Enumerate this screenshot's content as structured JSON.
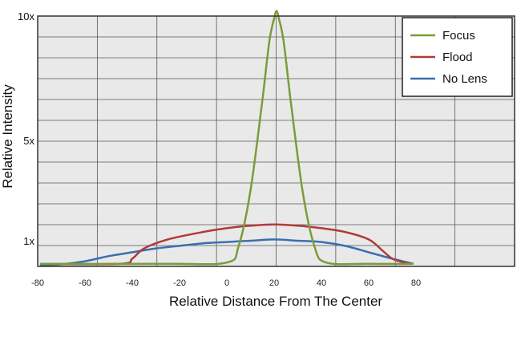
{
  "chart_data": {
    "type": "line",
    "xlabel": "Relative Distance From The Center",
    "ylabel": "Relative Intensity",
    "xlim": [
      -80,
      80
    ],
    "x_ticks": [
      "-80",
      "-60",
      "-40",
      "-20",
      "0",
      "20",
      "40",
      "60",
      "80"
    ],
    "y_ticks": [
      {
        "label": "1x",
        "value": 1
      },
      {
        "label": "5x",
        "value": 5
      },
      {
        "label": "10x",
        "value": 10
      }
    ],
    "grid": true,
    "legend": "top-right",
    "series": [
      {
        "name": "Focus",
        "color": "#7a9c3a",
        "points": [
          [
            -79,
            0.1
          ],
          [
            -25,
            0.1
          ],
          [
            0,
            0.15
          ],
          [
            5,
            0.8
          ],
          [
            10,
            3.0
          ],
          [
            15,
            6.6
          ],
          [
            18,
            9.0
          ],
          [
            20,
            9.9
          ],
          [
            21,
            10.2
          ],
          [
            22,
            9.9
          ],
          [
            24,
            9.0
          ],
          [
            27,
            6.6
          ],
          [
            32,
            3.0
          ],
          [
            37,
            0.8
          ],
          [
            42,
            0.15
          ],
          [
            60,
            0.1
          ],
          [
            79,
            0.1
          ]
        ]
      },
      {
        "name": "Flood",
        "color": "#b03a3a",
        "points": [
          [
            -79,
            0.1
          ],
          [
            -45,
            0.1
          ],
          [
            -40,
            0.3
          ],
          [
            -35,
            0.7
          ],
          [
            -25,
            1.05
          ],
          [
            -10,
            1.35
          ],
          [
            0,
            1.5
          ],
          [
            10,
            1.6
          ],
          [
            20,
            1.65
          ],
          [
            30,
            1.6
          ],
          [
            40,
            1.5
          ],
          [
            50,
            1.35
          ],
          [
            60,
            1.05
          ],
          [
            66,
            0.6
          ],
          [
            70,
            0.3
          ],
          [
            75,
            0.15
          ],
          [
            79,
            0.1
          ]
        ]
      },
      {
        "name": "No Lens",
        "color": "#3a6fb0",
        "points": [
          [
            -79,
            0.05
          ],
          [
            -70,
            0.08
          ],
          [
            -60,
            0.2
          ],
          [
            -50,
            0.4
          ],
          [
            -40,
            0.55
          ],
          [
            -30,
            0.7
          ],
          [
            -20,
            0.8
          ],
          [
            -10,
            0.9
          ],
          [
            0,
            0.95
          ],
          [
            10,
            1.0
          ],
          [
            20,
            1.05
          ],
          [
            30,
            1.0
          ],
          [
            40,
            0.95
          ],
          [
            50,
            0.8
          ],
          [
            60,
            0.55
          ],
          [
            70,
            0.3
          ],
          [
            79,
            0.1
          ]
        ]
      }
    ]
  }
}
